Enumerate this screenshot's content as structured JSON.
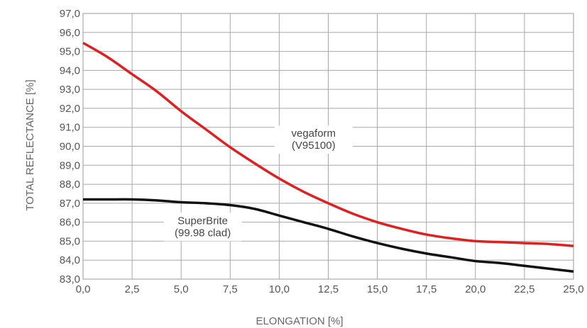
{
  "chart_data": {
    "type": "line",
    "title": "",
    "xlabel": "ELONGATION [%]",
    "ylabel": "TOTAL REFLECTANCE [%]",
    "xlim": [
      0,
      25
    ],
    "ylim": [
      83,
      97
    ],
    "grid": true,
    "x_ticks": [
      "0,0",
      "2,5",
      "5,0",
      "7,5",
      "10,0",
      "12,5",
      "15,0",
      "17,5",
      "20,0",
      "22,5",
      "25,0"
    ],
    "y_ticks": [
      "83,0",
      "84,0",
      "85,0",
      "86,0",
      "87,0",
      "88,0",
      "89,0",
      "90,0",
      "91,0",
      "92,0",
      "93,0",
      "94,0",
      "95,0",
      "96,0",
      "97,0"
    ],
    "series": [
      {
        "name": "vegaform (V95100)",
        "color": "#e02020",
        "x": [
          0,
          1.25,
          2.5,
          3.75,
          5,
          6.25,
          7.5,
          8.75,
          10,
          11.25,
          12.5,
          13.75,
          15,
          16.25,
          17.5,
          18.75,
          20,
          21.25,
          22.5,
          23.75,
          25
        ],
        "y": [
          95.45,
          94.7,
          93.8,
          92.9,
          91.85,
          90.9,
          89.95,
          89.1,
          88.3,
          87.6,
          87.0,
          86.45,
          86.0,
          85.65,
          85.35,
          85.15,
          85.0,
          84.95,
          84.9,
          84.85,
          84.75
        ]
      },
      {
        "name": "SuperBrite (99.98 clad)",
        "color": "#111111",
        "x": [
          0,
          1.25,
          2.5,
          3.75,
          5,
          6.25,
          7.5,
          8.75,
          10,
          11.25,
          12.5,
          13.75,
          15,
          16.25,
          17.5,
          18.75,
          20,
          21.25,
          22.5,
          23.75,
          25
        ],
        "y": [
          87.2,
          87.2,
          87.2,
          87.15,
          87.05,
          87.0,
          86.9,
          86.7,
          86.35,
          86.0,
          85.65,
          85.25,
          84.9,
          84.6,
          84.35,
          84.15,
          83.95,
          83.85,
          83.7,
          83.55,
          83.4
        ]
      }
    ],
    "annotations": [
      {
        "lines": [
          "vegaform",
          "(V95100)"
        ],
        "x": 11.75,
        "y": 90.35
      },
      {
        "lines": [
          "SuperBrite",
          "(99.98 clad)"
        ],
        "x": 6.1,
        "y": 85.75
      }
    ]
  }
}
